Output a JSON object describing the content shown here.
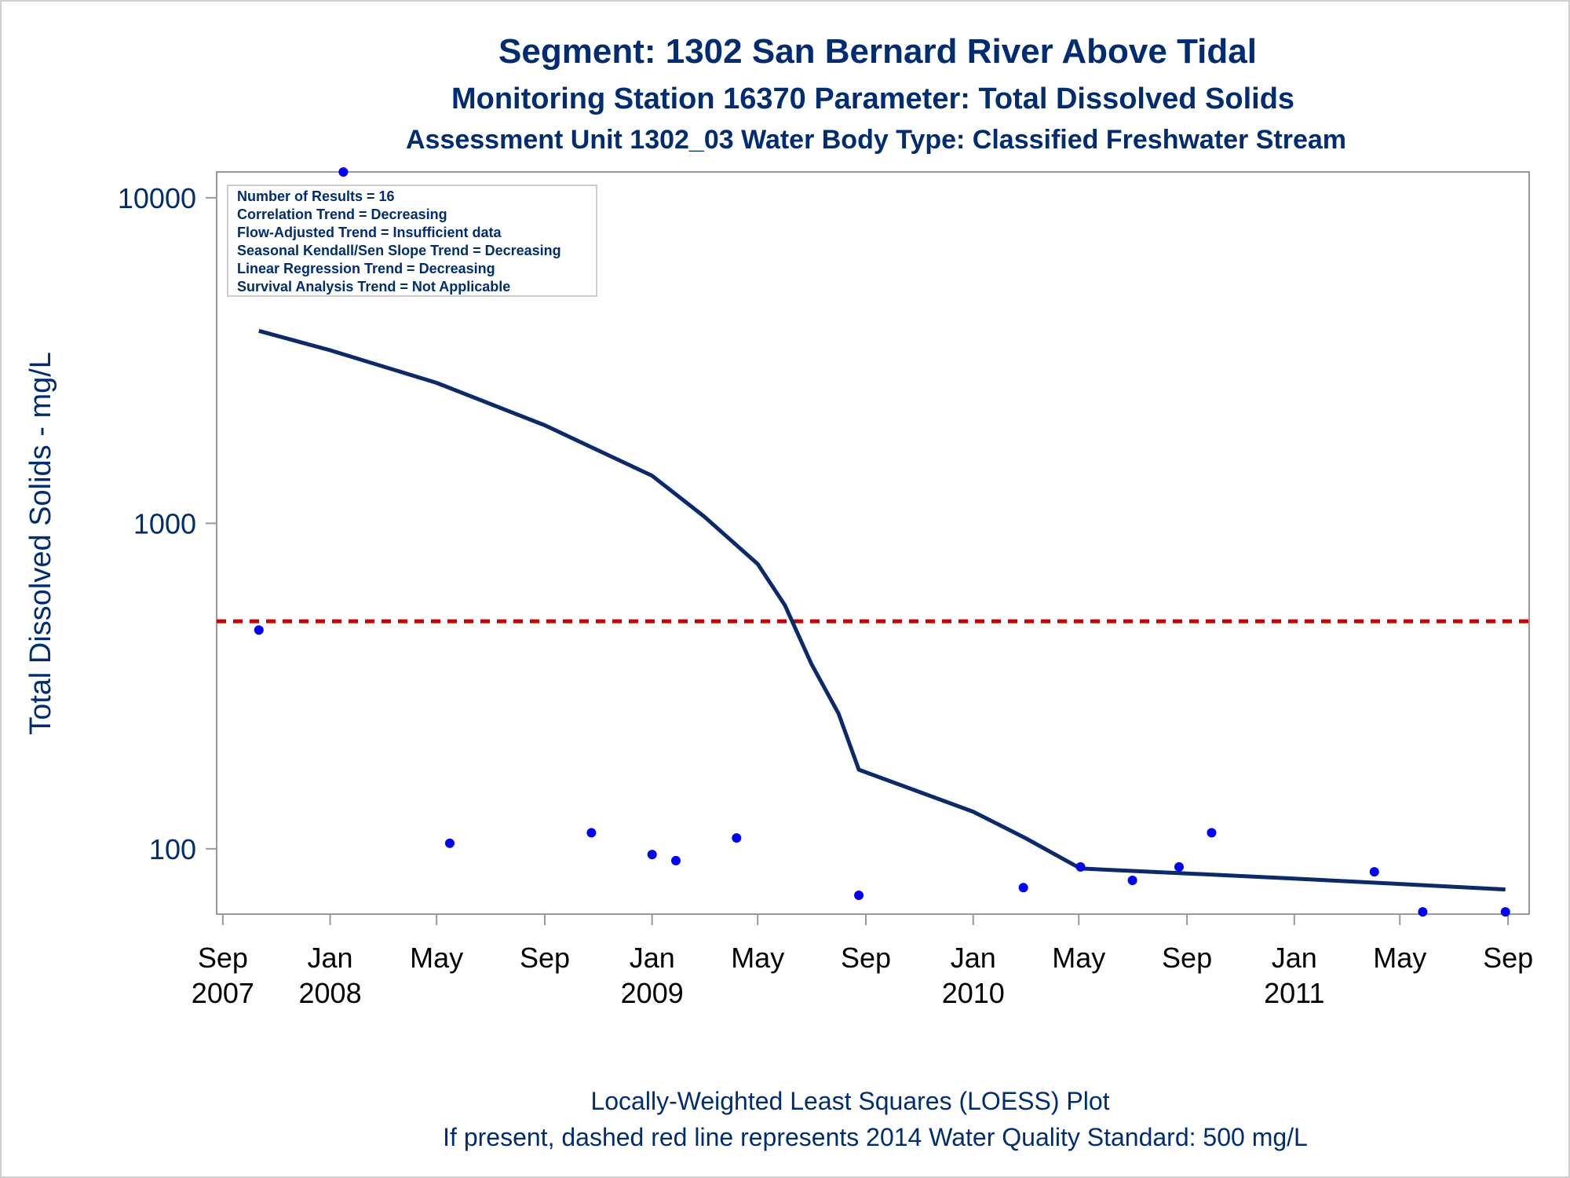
{
  "titles": {
    "line1": "Segment: 1302  San Bernard River Above Tidal",
    "line2": "Monitoring Station 16370 Parameter: Total Dissolved Solids",
    "line3": "Assessment Unit 1302_03   Water Body Type: Classified Freshwater Stream"
  },
  "footnotes": {
    "line1": "Locally-Weighted Least Squares (LOESS) Plot",
    "line2": "If present, dashed red line represents 2014 Water Quality Standard: 500   mg/L"
  },
  "info_box": {
    "lines": [
      "Number of Results = 16",
      "Correlation Trend = Decreasing",
      "Flow-Adjusted Trend = Insufficient data",
      "Seasonal Kendall/Sen Slope Trend = Decreasing",
      "Linear Regression Trend = Decreasing",
      "Survival Analysis Trend = Not Applicable"
    ]
  },
  "chart_data": {
    "type": "scatter",
    "ylabel": "Total Dissolved Solids - mg/L",
    "yscale": "log",
    "ylim": [
      63,
      12000
    ],
    "xlim": [
      "2007-08-25",
      "2011-09-25"
    ],
    "y_ticks": [
      {
        "value": 10000,
        "label": "10000"
      },
      {
        "value": 1000,
        "label": "1000"
      },
      {
        "value": 100,
        "label": "100"
      }
    ],
    "x_ticks": [
      {
        "date": "2007-09-01",
        "month": "Sep",
        "year": "2007"
      },
      {
        "date": "2008-01-01",
        "month": "Jan",
        "year": "2008"
      },
      {
        "date": "2008-05-01",
        "month": "May",
        "year": ""
      },
      {
        "date": "2008-09-01",
        "month": "Sep",
        "year": ""
      },
      {
        "date": "2009-01-01",
        "month": "Jan",
        "year": "2009"
      },
      {
        "date": "2009-05-01",
        "month": "May",
        "year": ""
      },
      {
        "date": "2009-09-01",
        "month": "Sep",
        "year": ""
      },
      {
        "date": "2010-01-01",
        "month": "Jan",
        "year": "2010"
      },
      {
        "date": "2010-05-01",
        "month": "May",
        "year": ""
      },
      {
        "date": "2010-09-01",
        "month": "Sep",
        "year": ""
      },
      {
        "date": "2011-01-01",
        "month": "Jan",
        "year": "2011"
      },
      {
        "date": "2011-05-01",
        "month": "May",
        "year": ""
      },
      {
        "date": "2011-09-01",
        "month": "Sep",
        "year": ""
      }
    ],
    "observations": [
      {
        "date": "2007-10-12",
        "value": 470
      },
      {
        "date": "2008-01-16",
        "value": 12000
      },
      {
        "date": "2008-05-16",
        "value": 104
      },
      {
        "date": "2008-10-24",
        "value": 112
      },
      {
        "date": "2009-01-01",
        "value": 96
      },
      {
        "date": "2009-01-28",
        "value": 92
      },
      {
        "date": "2009-04-07",
        "value": 108
      },
      {
        "date": "2009-08-24",
        "value": 72
      },
      {
        "date": "2010-02-27",
        "value": 76
      },
      {
        "date": "2010-05-03",
        "value": 88
      },
      {
        "date": "2010-07-01",
        "value": 80
      },
      {
        "date": "2010-08-23",
        "value": 88
      },
      {
        "date": "2010-09-29",
        "value": 112
      },
      {
        "date": "2011-04-02",
        "value": 85
      },
      {
        "date": "2011-05-27",
        "value": 64
      },
      {
        "date": "2011-08-29",
        "value": 64
      }
    ],
    "loess": [
      {
        "date": "2007-10-12",
        "value": 3900
      },
      {
        "date": "2008-01-01",
        "value": 3400
      },
      {
        "date": "2008-05-01",
        "value": 2700
      },
      {
        "date": "2008-09-01",
        "value": 2000
      },
      {
        "date": "2009-01-01",
        "value": 1400
      },
      {
        "date": "2009-03-01",
        "value": 1050
      },
      {
        "date": "2009-05-01",
        "value": 750
      },
      {
        "date": "2009-06-01",
        "value": 560
      },
      {
        "date": "2009-07-01",
        "value": 370
      },
      {
        "date": "2009-08-01",
        "value": 260
      },
      {
        "date": "2009-08-24",
        "value": 175
      },
      {
        "date": "2010-01-01",
        "value": 130
      },
      {
        "date": "2010-03-01",
        "value": 108
      },
      {
        "date": "2010-05-03",
        "value": 87
      },
      {
        "date": "2010-09-01",
        "value": 84
      },
      {
        "date": "2011-01-01",
        "value": 81
      },
      {
        "date": "2011-05-01",
        "value": 78
      },
      {
        "date": "2011-08-29",
        "value": 75
      }
    ],
    "standard": {
      "value": 500,
      "color": "#cc0000"
    },
    "colors": {
      "text": "#002d72",
      "points": "#0000ff",
      "line": "#0a2a6b",
      "frame": "#999999"
    }
  }
}
